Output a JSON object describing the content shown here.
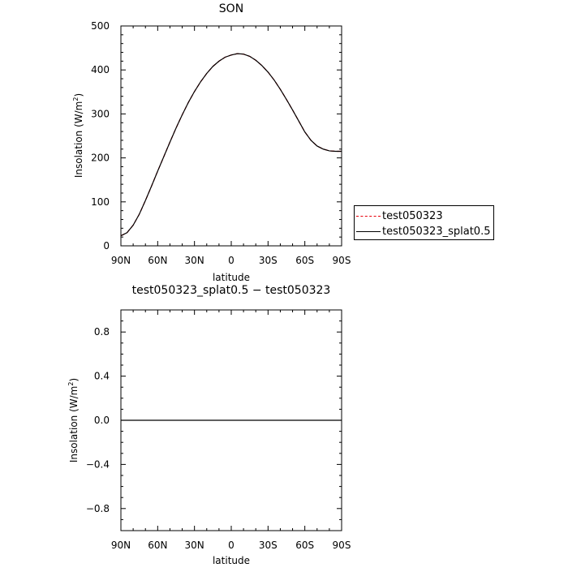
{
  "chart_data": [
    {
      "type": "line",
      "title": "SON",
      "xlabel": "latitude",
      "ylabel_prefix": "Insolation (W/m",
      "ylabel_sup": "2",
      "ylabel_suffix": ")",
      "xlim": [
        90,
        -90
      ],
      "ylim": [
        0,
        500
      ],
      "x_ticks": [
        {
          "value": 90,
          "label": "90N"
        },
        {
          "value": 60,
          "label": "60N"
        },
        {
          "value": 30,
          "label": "30N"
        },
        {
          "value": 0,
          "label": "0"
        },
        {
          "value": -30,
          "label": "30S"
        },
        {
          "value": -60,
          "label": "60S"
        },
        {
          "value": -90,
          "label": "90S"
        }
      ],
      "y_ticks": [
        {
          "value": 0,
          "label": "0"
        },
        {
          "value": 100,
          "label": "100"
        },
        {
          "value": 200,
          "label": "200"
        },
        {
          "value": 300,
          "label": "300"
        },
        {
          "value": 400,
          "label": "400"
        },
        {
          "value": 500,
          "label": "500"
        }
      ],
      "x": [
        90,
        85,
        80,
        75,
        70,
        65,
        60,
        55,
        50,
        45,
        40,
        35,
        30,
        25,
        20,
        15,
        10,
        5,
        0,
        -5,
        -10,
        -15,
        -20,
        -25,
        -30,
        -35,
        -40,
        -45,
        -50,
        -55,
        -60,
        -65,
        -70,
        -75,
        -80,
        -85,
        -90
      ],
      "series": [
        {
          "name": "test050323",
          "color": "#e8000b",
          "dash": true,
          "values": [
            23,
            30,
            47,
            72,
            103,
            136,
            170,
            203,
            236,
            268,
            298,
            326,
            351,
            373,
            392,
            408,
            420,
            429,
            434,
            437,
            436,
            431,
            422,
            410,
            395,
            377,
            356,
            333,
            309,
            284,
            259,
            240,
            227,
            220,
            216,
            215,
            215
          ]
        },
        {
          "name": "test050323_splat0.5",
          "color": "#000000",
          "dash": false,
          "values": [
            23,
            30,
            47,
            72,
            103,
            136,
            170,
            203,
            236,
            268,
            298,
            326,
            351,
            373,
            392,
            408,
            420,
            429,
            434,
            437,
            436,
            431,
            422,
            410,
            395,
            377,
            356,
            333,
            309,
            284,
            259,
            240,
            227,
            220,
            216,
            215,
            215
          ]
        }
      ],
      "legend_position": "right"
    },
    {
      "type": "line",
      "title": "test050323_splat0.5 − test050323",
      "xlabel": "latitude",
      "ylabel_prefix": "Insolation (W/m",
      "ylabel_sup": "2",
      "ylabel_suffix": ")",
      "xlim": [
        90,
        -90
      ],
      "ylim": [
        -1,
        1
      ],
      "x_ticks": [
        {
          "value": 90,
          "label": "90N"
        },
        {
          "value": 60,
          "label": "60N"
        },
        {
          "value": 30,
          "label": "30N"
        },
        {
          "value": 0,
          "label": "0"
        },
        {
          "value": -30,
          "label": "30S"
        },
        {
          "value": -60,
          "label": "60S"
        },
        {
          "value": -90,
          "label": "90S"
        }
      ],
      "y_ticks": [
        {
          "value": 0.8,
          "label": "0.8"
        },
        {
          "value": 0.4,
          "label": "0.4"
        },
        {
          "value": 0,
          "label": "0.0"
        },
        {
          "value": -0.4,
          "label": "−0.4"
        },
        {
          "value": -0.8,
          "label": "−0.8"
        }
      ],
      "x": [
        90,
        -90
      ],
      "series": [
        {
          "color": "#000000",
          "dash": false,
          "values": [
            0,
            0
          ]
        }
      ]
    }
  ]
}
